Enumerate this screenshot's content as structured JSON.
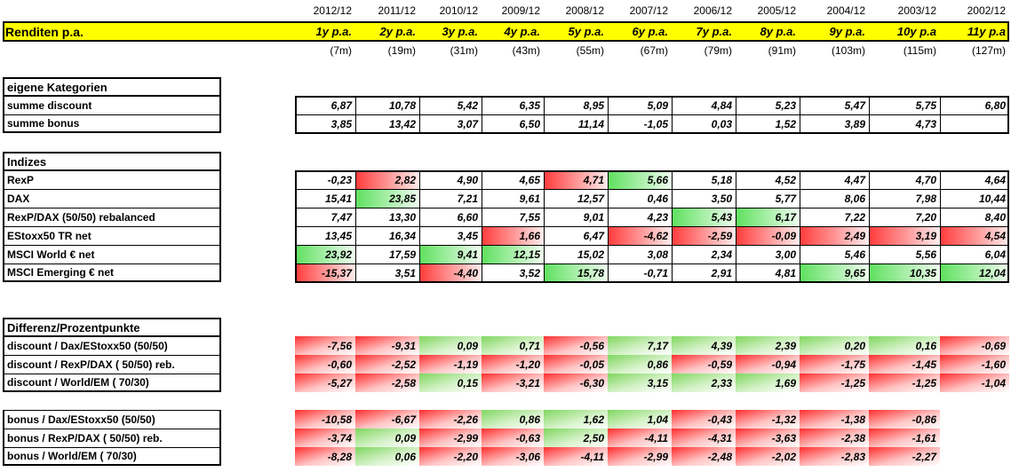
{
  "header": {
    "years": [
      "2012/12",
      "2011/12",
      "2010/12",
      "2009/12",
      "2008/12",
      "2007/12",
      "2006/12",
      "2005/12",
      "2004/12",
      "2003/12",
      "2002/12"
    ],
    "title": "Renditen p.a.",
    "periods": [
      "1y p.a.",
      "2y p.a.",
      "3y p.a.",
      "4y p.a.",
      "5y p.a.",
      "6y p.a.",
      "7y p.a.",
      "8y p.a.",
      "9y p.a.",
      "10y p.a",
      "11y p.a"
    ],
    "months": [
      "(7m)",
      "(19m)",
      "(31m)",
      "(43m)",
      "(55m)",
      "(67m)",
      "(79m)",
      "(91m)",
      "(103m)",
      "(115m)",
      "(127m)"
    ]
  },
  "sections": [
    {
      "title": "eigene Kategorien",
      "rows": [
        {
          "label": "summe discount",
          "values": [
            "6,87",
            "10,78",
            "5,42",
            "6,35",
            "8,95",
            "5,09",
            "4,84",
            "5,23",
            "5,47",
            "5,75",
            "6,80"
          ],
          "colors": [
            "",
            "",
            "",
            "",
            "",
            "",
            "",
            "",
            "",
            "",
            ""
          ]
        },
        {
          "label": "summe bonus",
          "values": [
            "3,85",
            "13,42",
            "3,07",
            "6,50",
            "11,14",
            "-1,05",
            "0,03",
            "1,52",
            "3,89",
            "4,73",
            ""
          ],
          "colors": [
            "",
            "",
            "",
            "",
            "",
            "",
            "",
            "",
            "",
            "",
            ""
          ]
        }
      ]
    },
    {
      "title": "Indizes",
      "rows": [
        {
          "label": "RexP",
          "values": [
            "-0,23",
            "2,82",
            "4,90",
            "4,65",
            "4,71",
            "5,66",
            "5,18",
            "4,52",
            "4,47",
            "4,70",
            "4,64"
          ],
          "colors": [
            "",
            "red-strong",
            "",
            "",
            "red-strong",
            "green-strong",
            "",
            "",
            "",
            "",
            ""
          ]
        },
        {
          "label": "DAX",
          "values": [
            "15,41",
            "23,85",
            "7,21",
            "9,61",
            "12,57",
            "0,46",
            "3,50",
            "5,77",
            "8,06",
            "7,98",
            "10,44"
          ],
          "colors": [
            "",
            "green-strong",
            "",
            "",
            "",
            "",
            "",
            "",
            "",
            "",
            ""
          ]
        },
        {
          "label": "RexP/DAX (50/50) rebalanced",
          "values": [
            "7,47",
            "13,30",
            "6,60",
            "7,55",
            "9,01",
            "4,23",
            "5,43",
            "6,17",
            "7,22",
            "7,20",
            "8,40"
          ],
          "colors": [
            "",
            "",
            "",
            "",
            "",
            "",
            "green-strong",
            "green-strong",
            "",
            "",
            ""
          ]
        },
        {
          "label": "EStoxx50 TR net",
          "values": [
            "13,45",
            "16,34",
            "3,45",
            "1,66",
            "6,47",
            "-4,62",
            "-2,59",
            "-0,09",
            "2,49",
            "3,19",
            "4,54"
          ],
          "colors": [
            "",
            "",
            "",
            "red-strong",
            "",
            "red-strong",
            "red-strong",
            "red-strong",
            "red-strong",
            "red-strong",
            "red-strong"
          ]
        },
        {
          "label": "MSCI World € net",
          "values": [
            "23,92",
            "17,59",
            "9,41",
            "12,15",
            "15,02",
            "3,08",
            "2,34",
            "3,00",
            "5,46",
            "5,56",
            "6,04"
          ],
          "colors": [
            "green-strong",
            "",
            "green-strong",
            "green-strong",
            "",
            "",
            "",
            "",
            "",
            "",
            ""
          ]
        },
        {
          "label": "MSCI Emerging € net",
          "values": [
            "-15,37",
            "3,51",
            "-4,40",
            "3,52",
            "15,78",
            "-0,71",
            "2,91",
            "4,81",
            "9,65",
            "10,35",
            "12,04"
          ],
          "colors": [
            "red-strong",
            "",
            "red-strong",
            "",
            "green-strong",
            "",
            "",
            "",
            "green-strong",
            "green-strong",
            "green-strong"
          ]
        }
      ]
    },
    {
      "title": "Differenz/Prozentpunkte",
      "rows": [
        {
          "label": "discount / Dax/EStoxx50 (50/50)",
          "values": [
            "-7,56",
            "-9,31",
            "0,09",
            "0,71",
            "-0,56",
            "7,17",
            "4,39",
            "2,39",
            "0,20",
            "0,16",
            "-0,69"
          ],
          "colors": [
            "diff-red",
            "diff-red",
            "diff-green",
            "diff-green",
            "diff-red",
            "diff-green",
            "diff-green",
            "diff-green",
            "diff-green",
            "diff-green",
            "diff-red"
          ]
        },
        {
          "label": "discount / RexP/DAX ( 50/50) reb.",
          "values": [
            "-0,60",
            "-2,52",
            "-1,19",
            "-1,20",
            "-0,05",
            "0,86",
            "-0,59",
            "-0,94",
            "-1,75",
            "-1,45",
            "-1,60"
          ],
          "colors": [
            "diff-red",
            "diff-red",
            "diff-red",
            "diff-red",
            "diff-red",
            "diff-green",
            "diff-red",
            "diff-red",
            "diff-red",
            "diff-red",
            "diff-red"
          ]
        },
        {
          "label": "discount / World/EM ( 70/30)",
          "values": [
            "-5,27",
            "-2,58",
            "0,15",
            "-3,21",
            "-6,30",
            "3,15",
            "2,33",
            "1,69",
            "-1,25",
            "-1,25",
            "-1,04"
          ],
          "colors": [
            "diff-red",
            "diff-red",
            "diff-green",
            "diff-red",
            "diff-red",
            "diff-green",
            "diff-green",
            "diff-green",
            "diff-red",
            "diff-red",
            "diff-red"
          ]
        }
      ]
    },
    {
      "title": "",
      "rows": [
        {
          "label": "bonus / Dax/EStoxx50 (50/50)",
          "values": [
            "-10,58",
            "-6,67",
            "-2,26",
            "0,86",
            "1,62",
            "1,04",
            "-0,43",
            "-1,32",
            "-1,38",
            "-0,86",
            ""
          ],
          "colors": [
            "diff-red",
            "diff-red",
            "diff-red",
            "diff-green",
            "diff-green",
            "diff-green",
            "diff-red",
            "diff-red",
            "diff-red",
            "diff-red",
            ""
          ]
        },
        {
          "label": "bonus / RexP/DAX ( 50/50) reb.",
          "values": [
            "-3,74",
            "0,09",
            "-2,99",
            "-0,63",
            "2,50",
            "-4,11",
            "-4,31",
            "-3,63",
            "-2,38",
            "-1,61",
            ""
          ],
          "colors": [
            "diff-red",
            "diff-green",
            "diff-red",
            "diff-red",
            "diff-green",
            "diff-red",
            "diff-red",
            "diff-red",
            "diff-red",
            "diff-red",
            ""
          ]
        },
        {
          "label": "bonus / World/EM ( 70/30)",
          "values": [
            "-8,28",
            "0,06",
            "-2,20",
            "-3,06",
            "-4,11",
            "-2,99",
            "-2,48",
            "-2,02",
            "-2,83",
            "-2,27",
            ""
          ],
          "colors": [
            "diff-red",
            "diff-green",
            "diff-red",
            "diff-red",
            "diff-red",
            "diff-red",
            "diff-red",
            "diff-red",
            "diff-red",
            "diff-red",
            ""
          ]
        }
      ]
    }
  ]
}
